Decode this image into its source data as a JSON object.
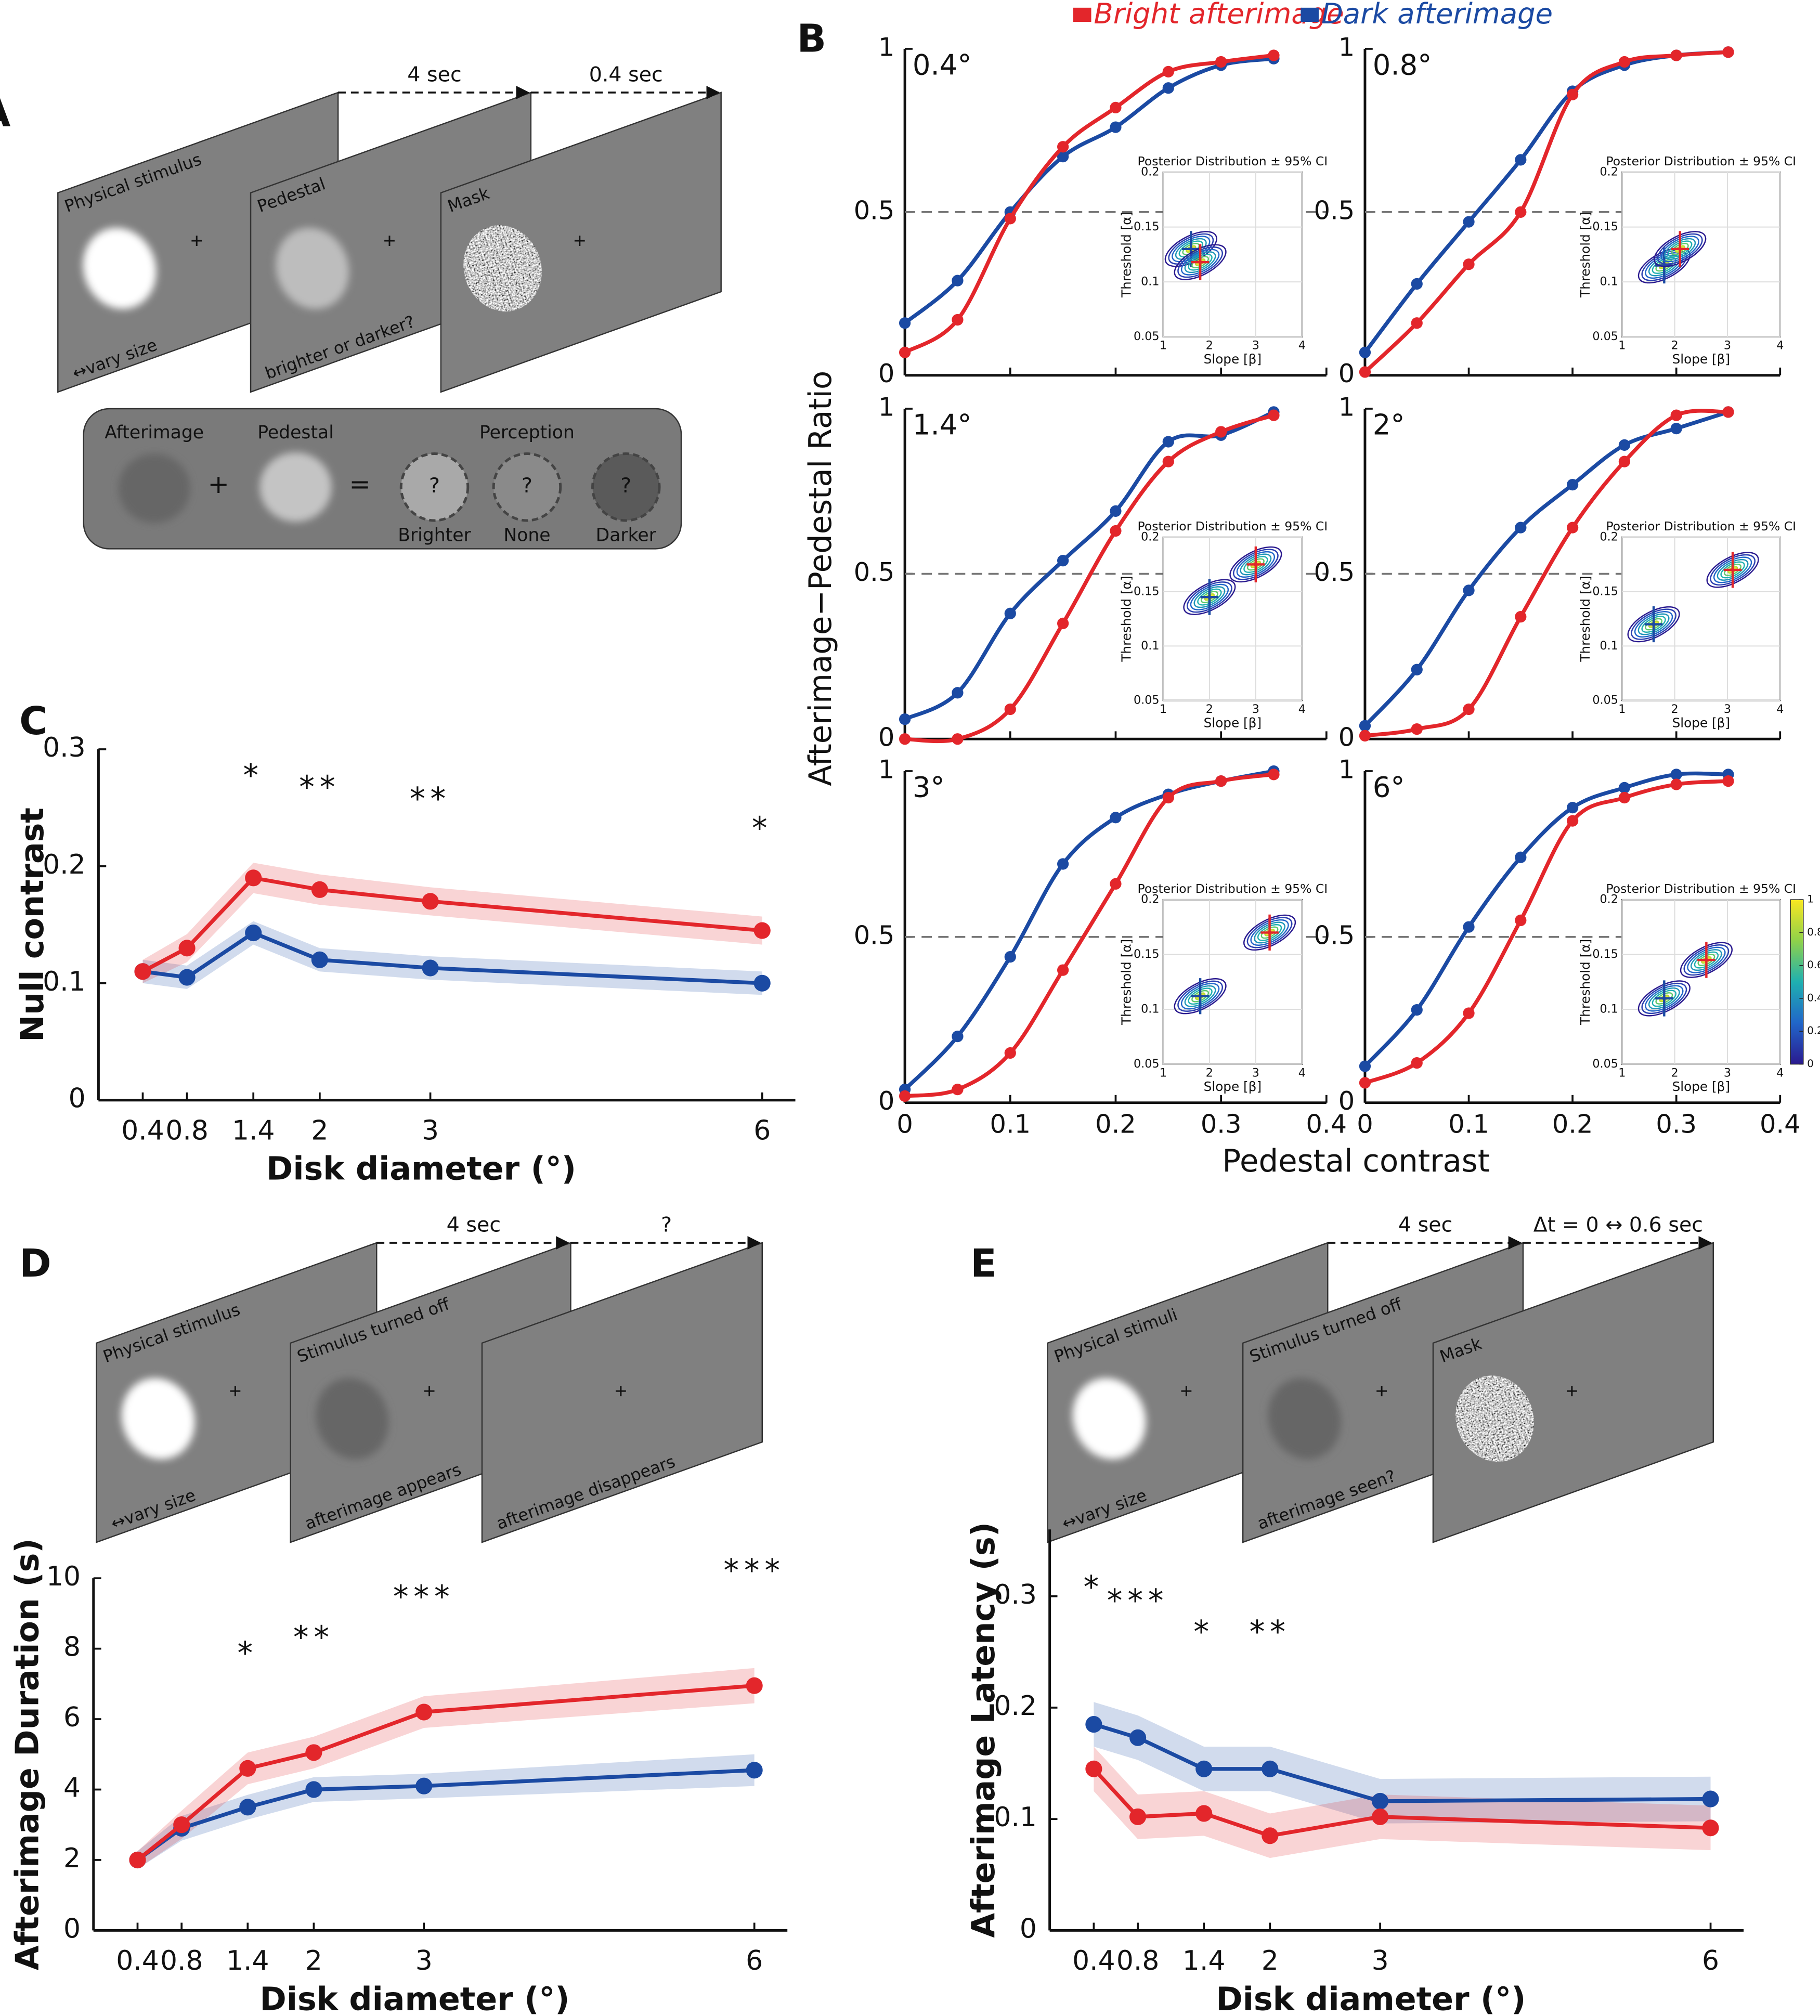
{
  "panel_a": {
    "label": "A",
    "durations": [
      "4 sec",
      "0.4 sec"
    ],
    "screens": [
      {
        "title": "Physical stimulus",
        "note": "↔vary size"
      },
      {
        "title": "Pedestal",
        "note": "brighter or darker?"
      },
      {
        "title": "Mask"
      }
    ],
    "equation": {
      "afterimage": "Afterimage",
      "plus": "+",
      "pedestal": "Pedestal",
      "equals": "=",
      "perception": "Perception",
      "unknown": "?",
      "outcomes": [
        "Brighter",
        "None",
        "Darker"
      ]
    }
  },
  "panel_b": {
    "label": "B",
    "legend": [
      {
        "name": "Bright afterimage",
        "color": "#e3262b"
      },
      {
        "name": "Dark afterimage",
        "color": "#1b4aa3"
      }
    ],
    "ylabel": "Afterimage−Pedestal Ratio",
    "xlabel": "Pedestal contrast",
    "inset": {
      "title": "Posterior Distribution ± 95% CI",
      "xlabel": "Slope [β]",
      "ylabel": "Threshold [α]",
      "xlim": [
        1,
        4
      ],
      "xticks": [
        1,
        2,
        3,
        4
      ],
      "ylim": [
        0.05,
        0.2
      ],
      "yticks": [
        0.05,
        0.1,
        0.15,
        0.2
      ],
      "colorbar_lim": [
        0,
        1
      ],
      "colorbar_ticks": [
        0,
        0.2,
        0.4,
        0.6,
        0.8,
        1
      ]
    }
  },
  "panel_d": {
    "label": "D",
    "durations": [
      "4 sec",
      "?"
    ],
    "screens": [
      {
        "title": "Physical stimulus",
        "note": "↔vary size"
      },
      {
        "title": "Stimulus turned off",
        "note": "afterimage appears"
      },
      {
        "note": "afterimage disappears"
      }
    ]
  },
  "panel_e": {
    "label": "E",
    "durations": [
      "4 sec",
      "Δt = 0 ↔ 0.6 sec"
    ],
    "screens": [
      {
        "title": "Physical stimuli",
        "note": "↔vary size"
      },
      {
        "title": "Stimulus turned off",
        "note": "afterimage seen?"
      },
      {
        "title": "Mask"
      }
    ]
  },
  "chart_data": [
    {
      "type": "psychometric",
      "title": "0.4°",
      "x": [
        0,
        0.05,
        0.1,
        0.15,
        0.2,
        0.25,
        0.3,
        0.35
      ],
      "xlim": [
        0,
        0.4
      ],
      "xticks": [
        0,
        0.1,
        0.2,
        0.3,
        0.4
      ],
      "ylim": [
        0,
        1
      ],
      "yticks": [
        0,
        0.5,
        1
      ],
      "reference_line": 0.5,
      "series": [
        {
          "color": "#1b4aa3",
          "values": [
            0.16,
            0.29,
            0.5,
            0.67,
            0.76,
            0.88,
            0.95,
            0.97
          ],
          "slope": 1.6,
          "threshold": 0.13
        },
        {
          "color": "#e3262b",
          "values": [
            0.07,
            0.17,
            0.48,
            0.7,
            0.82,
            0.93,
            0.96,
            0.98
          ],
          "slope": 1.8,
          "threshold": 0.118
        }
      ]
    },
    {
      "type": "psychometric",
      "title": "0.8°",
      "x": [
        0,
        0.05,
        0.1,
        0.15,
        0.2,
        0.25,
        0.3,
        0.35
      ],
      "xlim": [
        0,
        0.4
      ],
      "xticks": [
        0,
        0.1,
        0.2,
        0.3,
        0.4
      ],
      "ylim": [
        0,
        1
      ],
      "yticks": [
        0,
        0.5,
        1
      ],
      "reference_line": 0.5,
      "series": [
        {
          "color": "#1b4aa3",
          "values": [
            0.07,
            0.28,
            0.47,
            0.66,
            0.87,
            0.95,
            0.98,
            0.99
          ],
          "slope": 1.8,
          "threshold": 0.115
        },
        {
          "color": "#e3262b",
          "values": [
            0.01,
            0.16,
            0.34,
            0.5,
            0.86,
            0.96,
            0.98,
            0.99
          ],
          "slope": 2.1,
          "threshold": 0.13
        }
      ]
    },
    {
      "type": "psychometric",
      "title": "1.4°",
      "x": [
        0,
        0.05,
        0.1,
        0.15,
        0.2,
        0.25,
        0.3,
        0.35
      ],
      "xlim": [
        0,
        0.4
      ],
      "xticks": [
        0,
        0.1,
        0.2,
        0.3,
        0.4
      ],
      "ylim": [
        0,
        1
      ],
      "yticks": [
        0,
        0.5,
        1
      ],
      "reference_line": 0.5,
      "series": [
        {
          "color": "#1b4aa3",
          "values": [
            0.06,
            0.14,
            0.38,
            0.54,
            0.69,
            0.9,
            0.92,
            0.99
          ],
          "slope": 2,
          "threshold": 0.145
        },
        {
          "color": "#e3262b",
          "values": [
            0,
            0,
            0.09,
            0.35,
            0.63,
            0.84,
            0.93,
            0.98
          ],
          "slope": 3,
          "threshold": 0.175
        }
      ]
    },
    {
      "type": "psychometric",
      "title": "2°",
      "x": [
        0,
        0.05,
        0.1,
        0.15,
        0.2,
        0.25,
        0.3,
        0.35
      ],
      "xlim": [
        0,
        0.4
      ],
      "xticks": [
        0,
        0.1,
        0.2,
        0.3,
        0.4
      ],
      "ylim": [
        0,
        1
      ],
      "yticks": [
        0,
        0.5,
        1
      ],
      "reference_line": 0.5,
      "series": [
        {
          "color": "#1b4aa3",
          "values": [
            0.04,
            0.21,
            0.45,
            0.64,
            0.77,
            0.89,
            0.94,
            0.99
          ],
          "slope": 1.6,
          "threshold": 0.12
        },
        {
          "color": "#e3262b",
          "values": [
            0.01,
            0.03,
            0.09,
            0.37,
            0.64,
            0.84,
            0.98,
            0.99
          ],
          "slope": 3.1,
          "threshold": 0.17
        }
      ]
    },
    {
      "type": "psychometric",
      "title": "3°",
      "x": [
        0,
        0.05,
        0.1,
        0.15,
        0.2,
        0.25,
        0.3,
        0.35
      ],
      "xlim": [
        0,
        0.4
      ],
      "xticks": [
        0,
        0.1,
        0.2,
        0.3,
        0.4
      ],
      "ylim": [
        0,
        1
      ],
      "yticks": [
        0,
        0.5,
        1
      ],
      "reference_line": 0.5,
      "series": [
        {
          "color": "#1b4aa3",
          "values": [
            0.04,
            0.2,
            0.44,
            0.72,
            0.86,
            0.93,
            0.97,
            1
          ],
          "slope": 1.8,
          "threshold": 0.112
        },
        {
          "color": "#e3262b",
          "values": [
            0.02,
            0.04,
            0.15,
            0.4,
            0.66,
            0.92,
            0.97,
            0.99
          ],
          "slope": 3.3,
          "threshold": 0.17
        }
      ]
    },
    {
      "type": "psychometric",
      "title": "6°",
      "x": [
        0,
        0.05,
        0.1,
        0.15,
        0.2,
        0.25,
        0.3,
        0.35
      ],
      "xlim": [
        0,
        0.4
      ],
      "xticks": [
        0,
        0.1,
        0.2,
        0.3,
        0.4
      ],
      "ylim": [
        0,
        1
      ],
      "yticks": [
        0,
        0.5,
        1
      ],
      "reference_line": 0.5,
      "series": [
        {
          "color": "#1b4aa3",
          "values": [
            0.11,
            0.28,
            0.53,
            0.74,
            0.89,
            0.95,
            0.99,
            0.99
          ],
          "slope": 1.8,
          "threshold": 0.11
        },
        {
          "color": "#e3262b",
          "values": [
            0.06,
            0.12,
            0.27,
            0.55,
            0.85,
            0.92,
            0.96,
            0.97
          ],
          "slope": 2.6,
          "threshold": 0.145
        }
      ]
    },
    {
      "type": "line",
      "panel": "C",
      "xlabel": "Disk diameter (°)",
      "ylabel": "Null contrast",
      "x": [
        0.4,
        0.8,
        1.4,
        2,
        3,
        6
      ],
      "xlim": [
        0,
        6.3
      ],
      "xticks": [
        0.4,
        0.8,
        1.4,
        2,
        3,
        6
      ],
      "ylim": [
        0,
        0.3
      ],
      "yticks": [
        0,
        0.1,
        0.2,
        0.3
      ],
      "significance": [
        null,
        null,
        "*",
        "**",
        "**",
        "*"
      ],
      "series": [
        {
          "color": "#1b4aa3",
          "values": [
            0.11,
            0.105,
            0.143,
            0.12,
            0.113,
            0.1
          ],
          "band_lower": [
            0.1,
            0.095,
            0.133,
            0.11,
            0.103,
            0.09
          ],
          "band_upper": [
            0.12,
            0.115,
            0.153,
            0.13,
            0.123,
            0.11
          ]
        },
        {
          "color": "#e3262b",
          "values": [
            0.11,
            0.13,
            0.19,
            0.18,
            0.17,
            0.145
          ],
          "band_lower": [
            0.1,
            0.118,
            0.177,
            0.167,
            0.158,
            0.133
          ],
          "band_upper": [
            0.12,
            0.142,
            0.203,
            0.193,
            0.182,
            0.157
          ]
        }
      ]
    },
    {
      "type": "line",
      "xlabel": "Disk diameter (°)",
      "ylabel": "Afterimage Duration (s)",
      "x": [
        0.4,
        0.8,
        1.4,
        2,
        3,
        6
      ],
      "xlim": [
        0,
        6.3
      ],
      "xticks": [
        0.4,
        0.8,
        1.4,
        2,
        3,
        6
      ],
      "ylim": [
        0,
        10
      ],
      "yticks": [
        0,
        2,
        4,
        6,
        8,
        10
      ],
      "significance": [
        null,
        null,
        "*",
        "**",
        "***",
        "***"
      ],
      "series": [
        {
          "color": "#1b4aa3",
          "values": [
            2,
            2.9,
            3.5,
            4,
            4.1,
            4.55
          ],
          "band_lower": [
            1.75,
            2.55,
            3.15,
            3.65,
            3.75,
            4.1
          ],
          "band_upper": [
            2.25,
            3.25,
            3.85,
            4.35,
            4.45,
            5
          ]
        },
        {
          "color": "#e3262b",
          "values": [
            2,
            3,
            4.6,
            5.05,
            6.2,
            6.95
          ],
          "band_lower": [
            1.75,
            2.6,
            4.15,
            4.6,
            5.75,
            6.45
          ],
          "band_upper": [
            2.25,
            3.4,
            5.05,
            5.5,
            6.65,
            7.45
          ]
        }
      ]
    },
    {
      "type": "line",
      "xlabel": "Disk diameter (°)",
      "ylabel": "Afterimage Latency (s)",
      "x": [
        0.4,
        0.8,
        1.4,
        2,
        3,
        6
      ],
      "xlim": [
        0,
        6.3
      ],
      "xticks": [
        0.4,
        0.8,
        1.4,
        2,
        3,
        6
      ],
      "ylim": [
        0,
        0.36
      ],
      "yticks": [
        0,
        0.1,
        0.2,
        0.3
      ],
      "significance": [
        "*",
        "***",
        "*",
        "**",
        null,
        null
      ],
      "series": [
        {
          "color": "#1b4aa3",
          "values": [
            0.185,
            0.173,
            0.145,
            0.145,
            0.116,
            0.118
          ],
          "band_lower": [
            0.165,
            0.153,
            0.125,
            0.125,
            0.096,
            0.098
          ],
          "band_upper": [
            0.205,
            0.193,
            0.165,
            0.165,
            0.136,
            0.138
          ]
        },
        {
          "color": "#e3262b",
          "values": [
            0.145,
            0.102,
            0.105,
            0.085,
            0.102,
            0.092
          ],
          "band_lower": [
            0.125,
            0.082,
            0.085,
            0.065,
            0.082,
            0.072
          ],
          "band_upper": [
            0.165,
            0.122,
            0.125,
            0.105,
            0.122,
            0.112
          ]
        }
      ]
    }
  ]
}
